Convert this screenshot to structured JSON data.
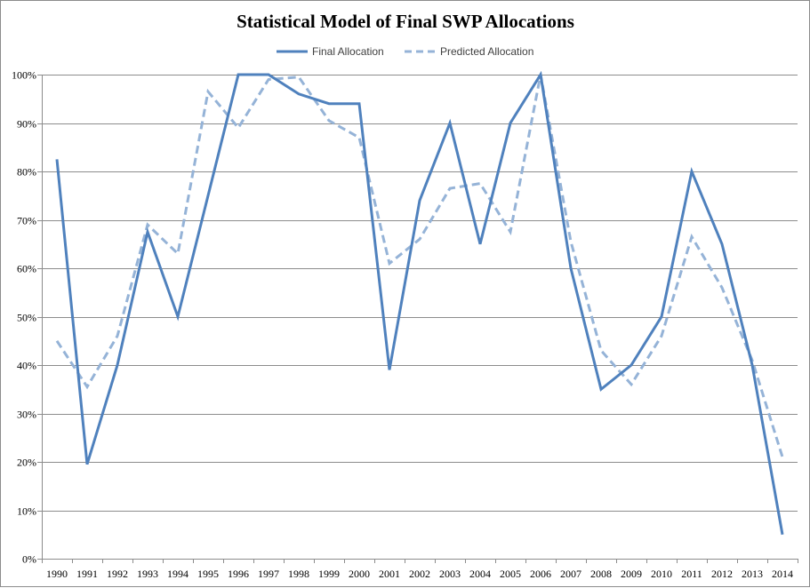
{
  "chart_data": {
    "type": "line",
    "title": "Statistical Model of Final SWP Allocations",
    "xlabel": "",
    "ylabel": "",
    "ylim": [
      0,
      100
    ],
    "y_ticks": [
      0,
      10,
      20,
      30,
      40,
      50,
      60,
      70,
      80,
      90,
      100
    ],
    "y_tick_labels": [
      "0%",
      "10%",
      "20%",
      "30%",
      "40%",
      "50%",
      "60%",
      "70%",
      "80%",
      "90%",
      "100%"
    ],
    "categories": [
      "1990",
      "1991",
      "1992",
      "1993",
      "1994",
      "1995",
      "1996",
      "1997",
      "1998",
      "1999",
      "2000",
      "2001",
      "2002",
      "2003",
      "2004",
      "2005",
      "2006",
      "2007",
      "2008",
      "2009",
      "2010",
      "2011",
      "2012",
      "2013",
      "2014"
    ],
    "grid": true,
    "legend_position": "top",
    "series": [
      {
        "name": "Final Allocation",
        "style": "solid",
        "color": "#4f81bd",
        "values": [
          82.5,
          19.5,
          40,
          67.5,
          50,
          75,
          100,
          100,
          96,
          94,
          94,
          39,
          74,
          90,
          65,
          90,
          100,
          60,
          35,
          40,
          50,
          80,
          65,
          40,
          5
        ]
      },
      {
        "name": "Predicted Allocation",
        "style": "dashed",
        "color": "#95b3d7",
        "values": [
          45,
          35.5,
          46,
          69,
          63,
          96.5,
          89,
          99,
          99.5,
          90.5,
          87,
          61,
          66,
          76.5,
          77.5,
          67.5,
          100,
          65.5,
          43,
          36,
          46,
          66.5,
          56,
          41,
          21
        ]
      }
    ]
  }
}
